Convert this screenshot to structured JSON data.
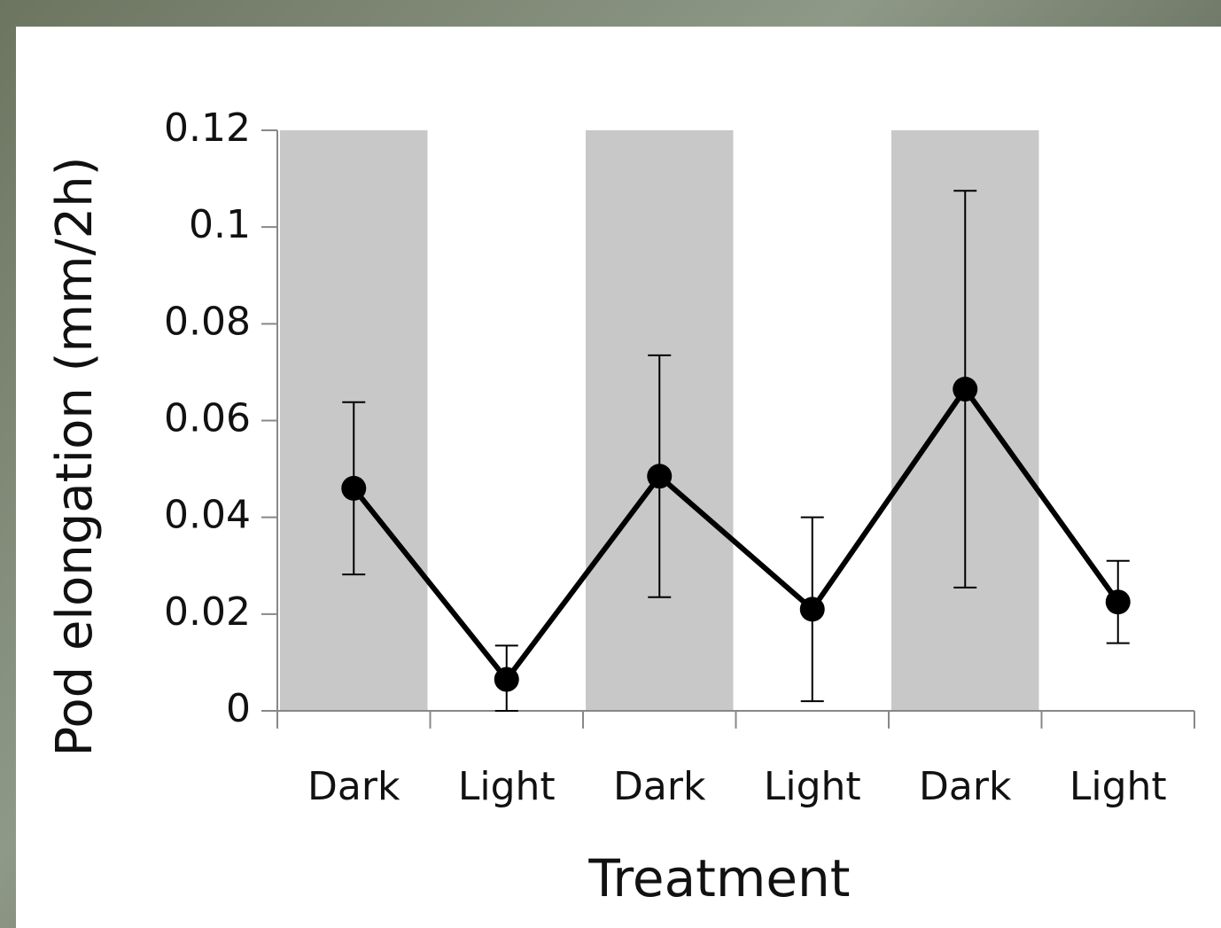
{
  "chart_data": {
    "type": "line",
    "x_label": "Treatment",
    "y_label": "Pod elongation (mm/2h)",
    "categories": [
      "Dark",
      "Light",
      "Dark",
      "Light",
      "Dark",
      "Light"
    ],
    "series": [
      {
        "color": "#000000",
        "values": [
          0.046,
          0.0065,
          0.0485,
          0.021,
          0.0665,
          0.0225
        ],
        "errors": [
          0.0178,
          0.007,
          0.025,
          0.019,
          0.041,
          0.0085
        ]
      }
    ],
    "shaded": [
      true,
      false,
      true,
      false,
      true,
      false
    ],
    "shade_color": "#c8c8c8",
    "ylim": [
      0,
      0.12
    ],
    "yticks": [
      0,
      0.02,
      0.04,
      0.06,
      0.08,
      0.1,
      0.12
    ]
  }
}
